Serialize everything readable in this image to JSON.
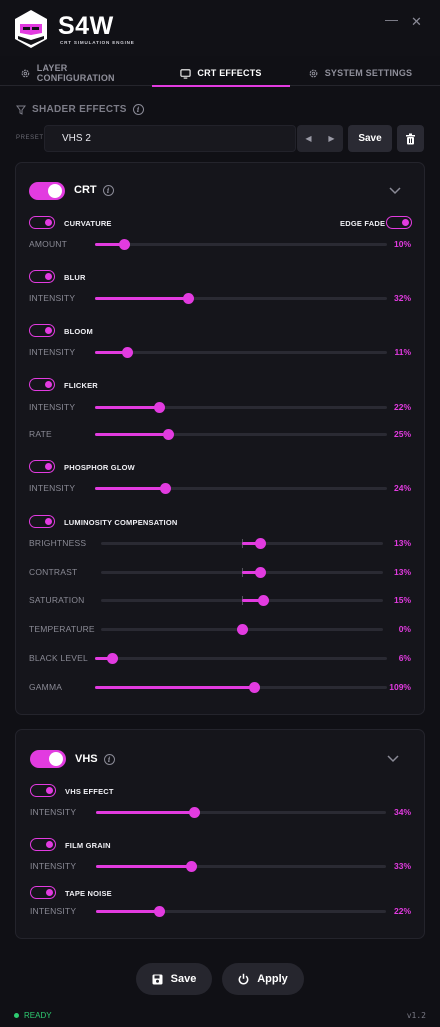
{
  "app": {
    "title": "S4W",
    "subtitle": "CRT SIMULATION ENGINE"
  },
  "window_controls": {
    "minimize": "—",
    "close": "✕"
  },
  "tabs": [
    {
      "label": "LAYER CONFIGURATION",
      "icon": "gear-icon"
    },
    {
      "label": "CRT EFFECTS",
      "icon": "monitor-icon",
      "active": true
    },
    {
      "label": "SYSTEM SETTINGS",
      "icon": "gear-icon"
    }
  ],
  "section": {
    "title": "SHADER EFFECTS"
  },
  "preset": {
    "label": "PRESET",
    "value": "VHS 2",
    "prev": "◀",
    "next": "▶",
    "save_label": "Save"
  },
  "crt": {
    "title": "CRT",
    "curvature": {
      "label": "CURVATURE",
      "edge_fade_label": "EDGE FADE",
      "amount_label": "AMOUNT",
      "amount": "10%",
      "amount_value": 10
    },
    "blur": {
      "label": "BLUR",
      "intensity_label": "INTENSITY",
      "intensity": "32%",
      "intensity_value": 32
    },
    "bloom": {
      "label": "BLOOM",
      "intensity_label": "INTENSITY",
      "intensity": "11%",
      "intensity_value": 11
    },
    "flicker": {
      "label": "FLICKER",
      "intensity_label": "INTENSITY",
      "intensity": "22%",
      "intensity_value": 22,
      "rate_label": "RATE",
      "rate": "25%",
      "rate_value": 25
    },
    "phosphor": {
      "label": "PHOSPHOR GLOW",
      "intensity_label": "INTENSITY",
      "intensity": "24%",
      "intensity_value": 24
    },
    "luminosity": {
      "label": "LUMINOSITY COMPENSATION",
      "brightness_label": "BRIGHTNESS",
      "brightness": "13%",
      "brightness_value": 13,
      "contrast_label": "CONTRAST",
      "contrast": "13%",
      "contrast_value": 13,
      "saturation_label": "SATURATION",
      "saturation": "15%",
      "saturation_value": 15,
      "temperature_label": "TEMPERATURE",
      "temperature": "0%",
      "temperature_value": 0,
      "black_label": "BLACK LEVEL",
      "black": "6%",
      "black_value": 6,
      "gamma_label": "GAMMA",
      "gamma": "109%",
      "gamma_value": 109
    }
  },
  "vhs": {
    "title": "VHS",
    "effect": {
      "label": "VHS EFFECT",
      "intensity_label": "INTENSITY",
      "intensity": "34%",
      "intensity_value": 34
    },
    "grain": {
      "label": "FILM GRAIN",
      "intensity_label": "INTENSITY",
      "intensity": "33%",
      "intensity_value": 33
    },
    "noise": {
      "label": "TAPE NOISE",
      "intensity_label": "INTENSITY",
      "intensity": "22%",
      "intensity_value": 22
    }
  },
  "footer": {
    "save_label": "Save",
    "apply_label": "Apply",
    "status": "READY",
    "version": "v1.2"
  },
  "colors": {
    "accent": "#e23be0",
    "background": "#101015",
    "panel": "#15151b",
    "status": "#2ecc71"
  }
}
